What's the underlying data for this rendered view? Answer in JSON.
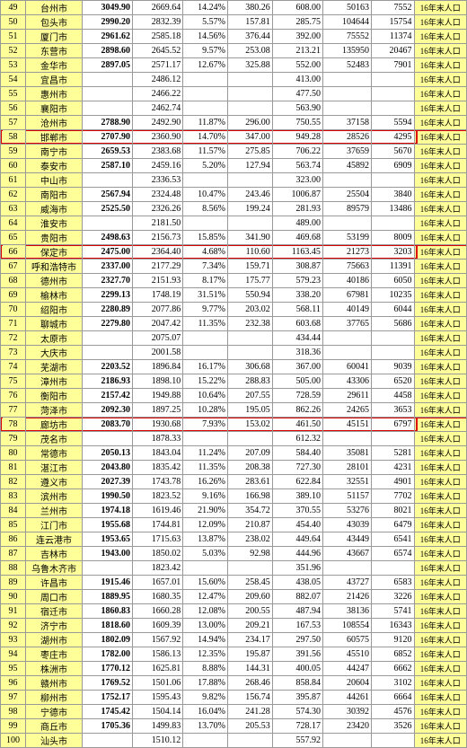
{
  "columns": [
    "idx",
    "city",
    "v1",
    "v2",
    "v3",
    "v4",
    "v5",
    "v6",
    "v7",
    "note"
  ],
  "note_text": "16年末人口",
  "highlight_rows": [
    58,
    66,
    78
  ],
  "styling": {
    "highlight_border_color": "#d00",
    "yellow_bg": "#ffff99",
    "border_color": "#999",
    "font_family": "SimSun",
    "base_font_size": 10,
    "row_height": 15.3,
    "col_widths": {
      "idx": 26,
      "city": 58,
      "v1": 52,
      "v2": 52,
      "v3": 46,
      "v4": 46,
      "v5": 52,
      "v6": 50,
      "v7": 44,
      "note": 54
    }
  },
  "rows": [
    [
      49,
      "台州市",
      "3049.90",
      "2669.64",
      "14.24%",
      "380.26",
      "608.00",
      "50163",
      "7552"
    ],
    [
      50,
      "包头市",
      "2990.20",
      "2832.39",
      "5.57%",
      "157.81",
      "285.75",
      "104644",
      "15754"
    ],
    [
      51,
      "厦门市",
      "2961.62",
      "2585.18",
      "14.56%",
      "376.44",
      "392.00",
      "75552",
      "11374"
    ],
    [
      52,
      "东营市",
      "2898.60",
      "2645.52",
      "9.57%",
      "253.08",
      "213.21",
      "135950",
      "20467"
    ],
    [
      53,
      "金华市",
      "2897.05",
      "2571.17",
      "12.67%",
      "325.88",
      "552.00",
      "52483",
      "7901"
    ],
    [
      54,
      "宜昌市",
      "",
      "2486.12",
      "",
      "",
      "413.00",
      "",
      ""
    ],
    [
      55,
      "惠州市",
      "",
      "2466.22",
      "",
      "",
      "477.50",
      "",
      ""
    ],
    [
      56,
      "襄阳市",
      "",
      "2462.74",
      "",
      "",
      "563.90",
      "",
      ""
    ],
    [
      57,
      "沧州市",
      "2788.90",
      "2492.90",
      "11.87%",
      "296.00",
      "750.55",
      "37158",
      "5594"
    ],
    [
      58,
      "邯郸市",
      "2707.90",
      "2360.90",
      "14.70%",
      "347.00",
      "949.28",
      "28526",
      "4295"
    ],
    [
      59,
      "南宁市",
      "2659.53",
      "2383.68",
      "11.57%",
      "275.85",
      "706.22",
      "37659",
      "5670"
    ],
    [
      60,
      "泰安市",
      "2587.10",
      "2459.16",
      "5.20%",
      "127.94",
      "563.74",
      "45892",
      "6909"
    ],
    [
      61,
      "中山市",
      "",
      "2336.53",
      "",
      "",
      "323.00",
      "",
      ""
    ],
    [
      62,
      "南阳市",
      "2567.94",
      "2324.48",
      "10.47%",
      "243.46",
      "1006.87",
      "25504",
      "3840"
    ],
    [
      63,
      "威海市",
      "2525.50",
      "2326.26",
      "8.56%",
      "199.24",
      "281.93",
      "89579",
      "13486"
    ],
    [
      64,
      "淮安市",
      "",
      "2181.50",
      "",
      "",
      "489.00",
      "",
      ""
    ],
    [
      65,
      "贵阳市",
      "2498.63",
      "2156.73",
      "15.85%",
      "341.90",
      "469.68",
      "53199",
      "8009"
    ],
    [
      66,
      "保定市",
      "2475.00",
      "2364.40",
      "4.68%",
      "110.60",
      "1163.45",
      "21273",
      "3203"
    ],
    [
      67,
      "呼和浩特市",
      "2337.00",
      "2177.29",
      "7.34%",
      "159.71",
      "308.87",
      "75663",
      "11391"
    ],
    [
      68,
      "德州市",
      "2327.70",
      "2151.93",
      "8.17%",
      "175.77",
      "579.23",
      "40186",
      "6050"
    ],
    [
      69,
      "榆林市",
      "2299.13",
      "1748.19",
      "31.51%",
      "550.94",
      "338.20",
      "67981",
      "10235"
    ],
    [
      70,
      "绍阳市",
      "2280.89",
      "2077.86",
      "9.77%",
      "203.02",
      "568.11",
      "40149",
      "6044"
    ],
    [
      71,
      "聊城市",
      "2279.80",
      "2047.42",
      "11.35%",
      "232.38",
      "603.68",
      "37765",
      "5686"
    ],
    [
      72,
      "太原市",
      "",
      "2075.07",
      "",
      "",
      "434.44",
      "",
      ""
    ],
    [
      73,
      "大庆市",
      "",
      "2001.58",
      "",
      "",
      "318.36",
      "",
      ""
    ],
    [
      74,
      "芜湖市",
      "2203.52",
      "1896.84",
      "16.17%",
      "306.68",
      "367.00",
      "60041",
      "9039"
    ],
    [
      75,
      "漳州市",
      "2186.93",
      "1898.10",
      "15.22%",
      "288.83",
      "505.00",
      "43306",
      "6520"
    ],
    [
      76,
      "衡阳市",
      "2157.42",
      "1949.88",
      "10.64%",
      "207.55",
      "728.59",
      "29611",
      "4458"
    ],
    [
      77,
      "菏泽市",
      "2092.30",
      "1897.25",
      "10.28%",
      "195.05",
      "862.26",
      "24265",
      "3653"
    ],
    [
      78,
      "廊坊市",
      "2083.70",
      "1930.68",
      "7.93%",
      "153.02",
      "461.50",
      "45151",
      "6797"
    ],
    [
      79,
      "茂名市",
      "",
      "1878.33",
      "",
      "",
      "612.32",
      "",
      ""
    ],
    [
      80,
      "常德市",
      "2050.13",
      "1843.04",
      "11.24%",
      "207.09",
      "584.40",
      "35081",
      "5281"
    ],
    [
      81,
      "湛江市",
      "2043.80",
      "1835.42",
      "11.35%",
      "208.38",
      "727.30",
      "28101",
      "4231"
    ],
    [
      82,
      "遵义市",
      "2027.39",
      "1743.78",
      "16.26%",
      "283.61",
      "622.84",
      "32551",
      "4901"
    ],
    [
      83,
      "滨州市",
      "1990.50",
      "1823.52",
      "9.16%",
      "166.98",
      "389.10",
      "51157",
      "7702"
    ],
    [
      84,
      "兰州市",
      "1974.18",
      "1619.46",
      "21.90%",
      "354.72",
      "370.55",
      "53276",
      "8021"
    ],
    [
      85,
      "江门市",
      "1955.68",
      "1744.81",
      "12.09%",
      "210.87",
      "454.40",
      "43039",
      "6479"
    ],
    [
      86,
      "连云港市",
      "1953.65",
      "1715.63",
      "13.87%",
      "238.02",
      "449.64",
      "43449",
      "6541"
    ],
    [
      87,
      "吉林市",
      "1943.00",
      "1850.02",
      "5.03%",
      "92.98",
      "444.96",
      "43667",
      "6574"
    ],
    [
      88,
      "乌鲁木齐市",
      "",
      "1823.42",
      "",
      "",
      "351.96",
      "",
      ""
    ],
    [
      89,
      "许昌市",
      "1915.46",
      "1657.01",
      "15.60%",
      "258.45",
      "438.05",
      "43727",
      "6583"
    ],
    [
      90,
      "周口市",
      "1889.95",
      "1680.35",
      "12.47%",
      "209.60",
      "882.07",
      "21426",
      "3226"
    ],
    [
      91,
      "宿迁市",
      "1860.83",
      "1660.28",
      "12.08%",
      "200.55",
      "487.94",
      "38136",
      "5741"
    ],
    [
      92,
      "济宁市",
      "1818.60",
      "1609.39",
      "13.00%",
      "209.21",
      "167.53",
      "108554",
      "16343"
    ],
    [
      93,
      "湖州市",
      "1802.09",
      "1567.92",
      "14.94%",
      "234.17",
      "297.50",
      "60575",
      "9120"
    ],
    [
      94,
      "枣庄市",
      "1782.00",
      "1586.13",
      "12.35%",
      "195.87",
      "391.56",
      "45510",
      "6852"
    ],
    [
      95,
      "株洲市",
      "1770.12",
      "1625.81",
      "8.88%",
      "144.31",
      "400.05",
      "44247",
      "6662"
    ],
    [
      96,
      "赣州市",
      "1769.52",
      "1501.06",
      "17.88%",
      "268.46",
      "858.84",
      "20604",
      "3102"
    ],
    [
      97,
      "柳州市",
      "1752.17",
      "1595.43",
      "9.82%",
      "156.74",
      "395.87",
      "44261",
      "6664"
    ],
    [
      98,
      "宁德市",
      "1745.42",
      "1504.14",
      "16.04%",
      "241.28",
      "574.30",
      "30392",
      "4576"
    ],
    [
      99,
      "商丘市",
      "1705.36",
      "1499.83",
      "13.70%",
      "205.53",
      "728.17",
      "23420",
      "3526"
    ],
    [
      100,
      "汕头市",
      "",
      "1510.12",
      "",
      "",
      "557.92",
      "",
      ""
    ]
  ]
}
